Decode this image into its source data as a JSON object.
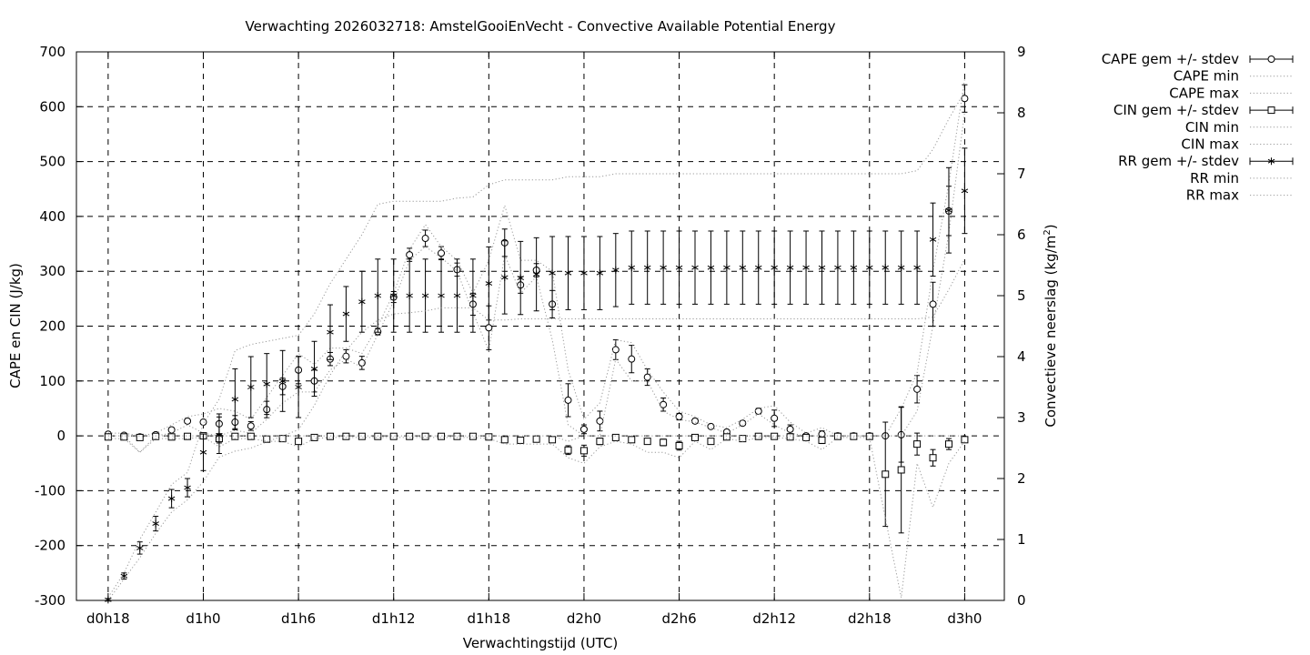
{
  "chart_data": {
    "type": "line",
    "title": "Verwachting 2026032718: AmstelGooiEnVecht - Convective Available Potential Energy",
    "xlabel": "Verwachtingstijd (UTC)",
    "ylabel": "CAPE en CIN (J/kg)",
    "y2label_main": "Convectieve neerslag (kg/m",
    "y2label_sup": "2",
    "y2label_end": ")",
    "x_unit": "hours since d0h18 (3-hourly ticks shown as day/hour)",
    "xlim": [
      -2,
      56.5
    ],
    "ylim": [
      -300,
      700
    ],
    "y2lim": [
      0,
      9
    ],
    "grid": true,
    "legend_position": "outside right",
    "x_ticks": [
      {
        "x": 0,
        "label": "d0h18"
      },
      {
        "x": 6,
        "label": "d1h0"
      },
      {
        "x": 12,
        "label": "d1h6"
      },
      {
        "x": 18,
        "label": "d1h12"
      },
      {
        "x": 24,
        "label": "d1h18"
      },
      {
        "x": 30,
        "label": "d2h0"
      },
      {
        "x": 36,
        "label": "d2h6"
      },
      {
        "x": 42,
        "label": "d2h12"
      },
      {
        "x": 48,
        "label": "d2h18"
      },
      {
        "x": 54,
        "label": "d3h0"
      }
    ],
    "y_ticks": [
      -300,
      -200,
      -100,
      0,
      100,
      200,
      300,
      400,
      500,
      600,
      700
    ],
    "y2_ticks": [
      0,
      1,
      2,
      3,
      4,
      5,
      6,
      7,
      8,
      9
    ],
    "x": [
      0,
      1,
      2,
      3,
      4,
      5,
      6,
      7,
      8,
      9,
      10,
      11,
      12,
      13,
      14,
      15,
      16,
      17,
      18,
      19,
      20,
      21,
      22,
      23,
      24,
      25,
      26,
      27,
      28,
      29,
      30,
      31,
      32,
      33,
      34,
      35,
      36,
      37,
      38,
      39,
      40,
      41,
      42,
      43,
      44,
      45,
      46,
      47,
      48,
      49,
      50,
      51,
      52,
      53,
      54
    ],
    "series": [
      {
        "name": "CAPE gem +/- stdev",
        "axis": "y1",
        "marker": "circle",
        "mean": [
          3,
          1,
          -2,
          2,
          11,
          27,
          25,
          22,
          25,
          18,
          48,
          90,
          120,
          100,
          140,
          145,
          133,
          190,
          253,
          330,
          360,
          333,
          303,
          240,
          197,
          352,
          275,
          302,
          240,
          65,
          12,
          27,
          157,
          140,
          107,
          57,
          35,
          27,
          17,
          7,
          23,
          45,
          32,
          12,
          0,
          3,
          0,
          0,
          0,
          0,
          2,
          85,
          240,
          410,
          615
        ],
        "sd": [
          4,
          4,
          4,
          4,
          4,
          4,
          4,
          18,
          12,
          8,
          15,
          15,
          25,
          20,
          12,
          12,
          12,
          6,
          10,
          12,
          15,
          12,
          12,
          20,
          40,
          25,
          15,
          12,
          25,
          30,
          8,
          18,
          18,
          25,
          15,
          12,
          6,
          4,
          2,
          4,
          4,
          5,
          15,
          8,
          3,
          6,
          2,
          2,
          2,
          2,
          50,
          25,
          40,
          45,
          25
        ]
      },
      {
        "name": "CAPE min",
        "axis": "y1",
        "style": "dotted",
        "values": [
          0,
          0,
          -30,
          0,
          5,
          20,
          5,
          0,
          10,
          5,
          30,
          60,
          80,
          80,
          120,
          140,
          125,
          185,
          245,
          320,
          345,
          325,
          300,
          225,
          155,
          330,
          260,
          290,
          175,
          20,
          0,
          0,
          140,
          100,
          100,
          45,
          30,
          25,
          15,
          5,
          20,
          40,
          20,
          5,
          0,
          0,
          0,
          0,
          0,
          0,
          0,
          45,
          200,
          370,
          590
        ]
      },
      {
        "name": "CAPE max",
        "axis": "y1",
        "style": "dotted",
        "values": [
          5,
          5,
          0,
          5,
          20,
          35,
          40,
          50,
          45,
          30,
          70,
          110,
          150,
          130,
          160,
          160,
          150,
          200,
          260,
          340,
          385,
          345,
          320,
          260,
          320,
          420,
          320,
          320,
          300,
          120,
          30,
          60,
          175,
          170,
          120,
          80,
          45,
          35,
          20,
          15,
          30,
          50,
          55,
          25,
          5,
          15,
          0,
          0,
          0,
          0,
          50,
          115,
          300,
          460,
          650
        ]
      },
      {
        "name": "CIN gem +/- stdev",
        "axis": "y1",
        "marker": "square",
        "mean": [
          -2,
          -2,
          -3,
          -1,
          -2,
          -1,
          0,
          -5,
          -1,
          -1,
          -6,
          -5,
          -10,
          -3,
          -1,
          -1,
          -1,
          -1,
          -1,
          -1,
          -1,
          -1,
          -1,
          -1,
          -2,
          -7,
          -8,
          -6,
          -7,
          -26,
          -27,
          -10,
          -3,
          -7,
          -10,
          -12,
          -18,
          -3,
          -10,
          -2,
          -5,
          -1,
          -1,
          -2,
          -3,
          -8,
          -1,
          -1,
          -1,
          -70,
          -62,
          -15,
          -40,
          -15,
          -7
        ],
        "sd": [
          3,
          3,
          3,
          2,
          2,
          2,
          2,
          8,
          2,
          2,
          2,
          2,
          5,
          2,
          1,
          1,
          1,
          1,
          1,
          1,
          1,
          1,
          1,
          1,
          2,
          4,
          4,
          4,
          4,
          8,
          10,
          6,
          3,
          4,
          4,
          6,
          8,
          3,
          4,
          2,
          2,
          1,
          1,
          2,
          3,
          6,
          1,
          1,
          1,
          95,
          115,
          20,
          15,
          10,
          5
        ]
      },
      {
        "name": "CIN min",
        "axis": "y1",
        "style": "dotted",
        "values": [
          -5,
          -5,
          -30,
          -5,
          -5,
          -5,
          -2,
          -20,
          -5,
          -5,
          -10,
          -10,
          -20,
          -5,
          -3,
          -3,
          -3,
          -3,
          -3,
          -3,
          -3,
          -3,
          -3,
          -3,
          -5,
          -15,
          -15,
          -15,
          -15,
          -40,
          -50,
          -20,
          -10,
          -15,
          -30,
          -30,
          -40,
          -10,
          -25,
          -5,
          -10,
          -3,
          -3,
          -5,
          -10,
          -25,
          -3,
          -3,
          -3,
          -150,
          -295,
          -50,
          -130,
          -50,
          -10
        ]
      },
      {
        "name": "CIN max",
        "axis": "y1",
        "style": "dotted",
        "values": [
          0,
          0,
          0,
          0,
          0,
          0,
          0,
          0,
          0,
          0,
          0,
          0,
          0,
          0,
          0,
          0,
          0,
          0,
          0,
          0,
          0,
          0,
          0,
          0,
          0,
          0,
          0,
          0,
          0,
          -10,
          0,
          0,
          0,
          0,
          0,
          0,
          0,
          0,
          0,
          0,
          0,
          0,
          0,
          0,
          0,
          0,
          0,
          0,
          0,
          0,
          0,
          0,
          0,
          0,
          0
        ]
      },
      {
        "name": "RR gem +/- stdev",
        "axis": "y2",
        "marker": "star",
        "mean": [
          0.01,
          0.4,
          0.86,
          1.26,
          1.67,
          1.85,
          2.43,
          2.71,
          3.3,
          3.5,
          3.55,
          3.6,
          3.5,
          3.8,
          4.4,
          4.7,
          4.9,
          5.0,
          5.0,
          5.0,
          5.0,
          5.0,
          5.0,
          5.0,
          5.2,
          5.3,
          5.29,
          5.35,
          5.37,
          5.37,
          5.37,
          5.37,
          5.42,
          5.46,
          5.46,
          5.46,
          5.46,
          5.46,
          5.46,
          5.46,
          5.46,
          5.46,
          5.46,
          5.46,
          5.46,
          5.46,
          5.46,
          5.46,
          5.46,
          5.46,
          5.46,
          5.46,
          5.92,
          6.4,
          6.72
        ],
        "sd": [
          0.02,
          0.05,
          0.1,
          0.12,
          0.15,
          0.15,
          0.3,
          0.3,
          0.5,
          0.5,
          0.5,
          0.5,
          0.5,
          0.45,
          0.45,
          0.45,
          0.5,
          0.6,
          0.6,
          0.6,
          0.6,
          0.6,
          0.6,
          0.6,
          0.6,
          0.6,
          0.6,
          0.6,
          0.6,
          0.6,
          0.6,
          0.6,
          0.6,
          0.6,
          0.6,
          0.6,
          0.6,
          0.6,
          0.6,
          0.6,
          0.6,
          0.6,
          0.6,
          0.6,
          0.6,
          0.6,
          0.6,
          0.6,
          0.6,
          0.6,
          0.6,
          0.6,
          0.6,
          0.7,
          0.7
        ]
      },
      {
        "name": "RR min",
        "axis": "y2",
        "style": "dotted",
        "values": [
          0,
          0.35,
          0.7,
          1.1,
          1.45,
          1.65,
          1.95,
          2.35,
          2.45,
          2.5,
          2.6,
          2.7,
          2.8,
          3.2,
          3.7,
          4.1,
          4.4,
          4.6,
          4.7,
          4.72,
          4.75,
          4.8,
          4.8,
          4.8,
          4.6,
          4.6,
          4.62,
          4.62,
          4.62,
          4.62,
          4.62,
          4.62,
          4.62,
          4.62,
          4.62,
          4.62,
          4.62,
          4.62,
          4.62,
          4.62,
          4.62,
          4.62,
          4.62,
          4.62,
          4.62,
          4.62,
          4.62,
          4.62,
          4.62,
          4.62,
          4.62,
          4.62,
          4.65,
          5.1,
          5.6
        ]
      },
      {
        "name": "RR max",
        "axis": "y2",
        "style": "dotted",
        "values": [
          0.05,
          0.45,
          1.0,
          1.45,
          1.9,
          2.1,
          2.9,
          3.3,
          4.1,
          4.2,
          4.25,
          4.3,
          4.35,
          4.7,
          5.2,
          5.6,
          6.0,
          6.5,
          6.55,
          6.55,
          6.55,
          6.55,
          6.6,
          6.62,
          6.82,
          6.9,
          6.9,
          6.9,
          6.9,
          6.95,
          6.95,
          6.95,
          7.0,
          7.0,
          7.0,
          7.0,
          7.0,
          7.0,
          7.0,
          7.0,
          7.0,
          7.0,
          7.0,
          7.0,
          7.0,
          7.0,
          7.0,
          7.0,
          7.0,
          7.0,
          7.0,
          7.05,
          7.4,
          7.9,
          8.35
        ]
      }
    ]
  }
}
